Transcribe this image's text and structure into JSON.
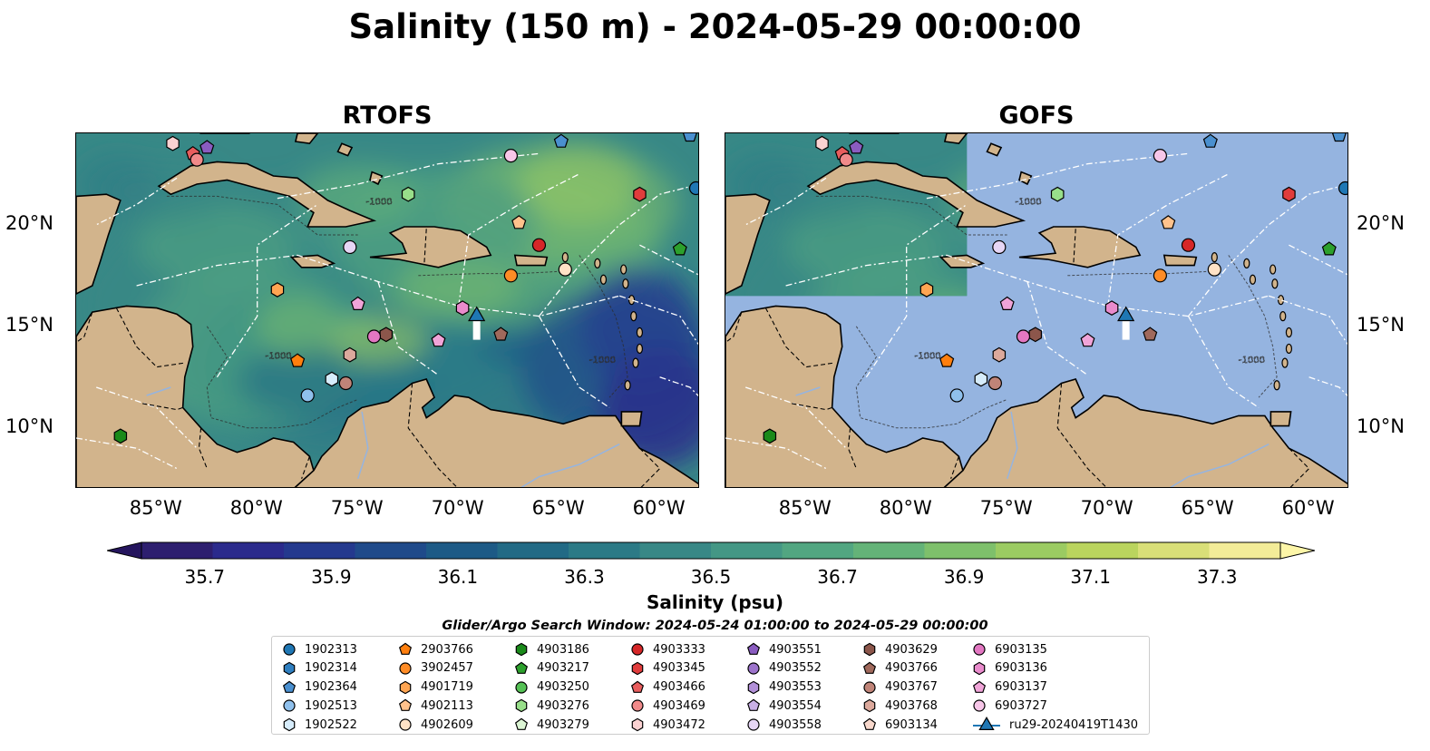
{
  "figure": {
    "suptitle": "Salinity (150 m) - 2024-05-29 00:00:00",
    "panels": [
      {
        "title": "RTOFS"
      },
      {
        "title": "GOFS"
      }
    ],
    "x_ticks": [
      "85°W",
      "80°W",
      "75°W",
      "70°W",
      "65°W",
      "60°W"
    ],
    "y_ticks": [
      "20°N",
      "15°N",
      "10°N"
    ],
    "lon_range": [
      -89,
      -58
    ],
    "lat_range": [
      7,
      24.5
    ],
    "contour_labels": [
      "-1000",
      "-1000",
      "-1000"
    ]
  },
  "colorbar": {
    "label": "Salinity (psu)",
    "range": [
      35.6,
      37.4
    ],
    "ticks": [
      "35.7",
      "35.9",
      "36.1",
      "36.3",
      "36.5",
      "36.7",
      "36.9",
      "37.1",
      "37.3"
    ],
    "colors": [
      "#2d1e6f",
      "#2b2a8c",
      "#24398e",
      "#1f4a8a",
      "#1d5a86",
      "#226a85",
      "#2c7a86",
      "#388886",
      "#449785",
      "#52a681",
      "#64b378",
      "#7ec06b",
      "#9bcb62",
      "#bad45e",
      "#d9df78",
      "#f3ec98"
    ]
  },
  "search_window": "Glider/Argo Search Window: 2024-05-24 01:00:00 to 2024-05-29 00:00:00",
  "legend": {
    "columns": [
      [
        {
          "label": "1902313",
          "marker": "circle",
          "color": "#1f77b4"
        },
        {
          "label": "1902314",
          "marker": "hexagon",
          "color": "#2f7fc0"
        },
        {
          "label": "1902364",
          "marker": "pentagon",
          "color": "#4a90d0"
        },
        {
          "label": "1902513",
          "marker": "circle",
          "color": "#8fc0ec"
        },
        {
          "label": "1902522",
          "marker": "hexagon",
          "color": "#d6ecfb"
        }
      ],
      [
        {
          "label": "2903766",
          "marker": "pentagon",
          "color": "#ff7f0e"
        },
        {
          "label": "3902457",
          "marker": "circle",
          "color": "#ff8c26"
        },
        {
          "label": "4901719",
          "marker": "hexagon",
          "color": "#ffa552"
        },
        {
          "label": "4902113",
          "marker": "pentagon",
          "color": "#ffc28c"
        },
        {
          "label": "4902609",
          "marker": "circle",
          "color": "#ffe2c6"
        }
      ],
      [
        {
          "label": "4903186",
          "marker": "hexagon",
          "color": "#1a8a1a"
        },
        {
          "label": "4903217",
          "marker": "pentagon",
          "color": "#2ca02c"
        },
        {
          "label": "4903250",
          "marker": "circle",
          "color": "#55c155"
        },
        {
          "label": "4903276",
          "marker": "hexagon",
          "color": "#98df8a"
        },
        {
          "label": "4903279",
          "marker": "pentagon",
          "color": "#dcf5d4"
        }
      ],
      [
        {
          "label": "4903333",
          "marker": "circle",
          "color": "#d62728"
        },
        {
          "label": "4903345",
          "marker": "hexagon",
          "color": "#e03c3c"
        },
        {
          "label": "4903466",
          "marker": "pentagon",
          "color": "#e85d5d"
        },
        {
          "label": "4903469",
          "marker": "circle",
          "color": "#f08a8a"
        },
        {
          "label": "4903472",
          "marker": "hexagon",
          "color": "#fbd2d2"
        }
      ],
      [
        {
          "label": "4903551",
          "marker": "pentagon",
          "color": "#8a5cc0"
        },
        {
          "label": "4903552",
          "marker": "circle",
          "color": "#9d74cc"
        },
        {
          "label": "4903553",
          "marker": "hexagon",
          "color": "#b290d8"
        },
        {
          "label": "4903554",
          "marker": "pentagon",
          "color": "#c9b0e6"
        },
        {
          "label": "4903558",
          "marker": "circle",
          "color": "#e6d6f5"
        }
      ],
      [
        {
          "label": "4903629",
          "marker": "hexagon",
          "color": "#8c564b"
        },
        {
          "label": "4903766",
          "marker": "pentagon",
          "color": "#a0695c"
        },
        {
          "label": "4903767",
          "marker": "circle",
          "color": "#c08478"
        },
        {
          "label": "4903768",
          "marker": "hexagon",
          "color": "#dca99c"
        },
        {
          "label": "6903134",
          "marker": "pentagon",
          "color": "#f8d8cc"
        }
      ],
      [
        {
          "label": "6903135",
          "marker": "circle",
          "color": "#e377c2"
        },
        {
          "label": "6903136",
          "marker": "hexagon",
          "color": "#e98bcc"
        },
        {
          "label": "6903137",
          "marker": "pentagon",
          "color": "#f0a4d8"
        },
        {
          "label": "6903727",
          "marker": "circle",
          "color": "#f7c6e8"
        },
        {
          "label": "ru29-20240419T1430",
          "marker": "triangle-line",
          "color": "#1f77b4"
        }
      ]
    ]
  },
  "markers": [
    {
      "id": "1902313",
      "lon": -58.2,
      "lat": 21.8
    },
    {
      "id": "1902364",
      "lon": -64.9,
      "lat": 24.1
    },
    {
      "id": "1902364b",
      "lon": -58.5,
      "lat": 24.4
    },
    {
      "id": "1902513",
      "lon": -77.5,
      "lat": 11.6
    },
    {
      "id": "1902522",
      "lon": -76.3,
      "lat": 12.4
    },
    {
      "id": "2903766",
      "lon": -78.0,
      "lat": 13.3
    },
    {
      "id": "3902457",
      "lon": -67.4,
      "lat": 17.5
    },
    {
      "id": "4901719",
      "lon": -79.0,
      "lat": 16.8
    },
    {
      "id": "4902113",
      "lon": -67.0,
      "lat": 20.1
    },
    {
      "id": "4902609",
      "lon": -64.7,
      "lat": 17.8
    },
    {
      "id": "4903186",
      "lon": -86.8,
      "lat": 9.6
    },
    {
      "id": "4903217",
      "lon": -59.0,
      "lat": 18.8
    },
    {
      "id": "4903276",
      "lon": -72.5,
      "lat": 21.5
    },
    {
      "id": "4903333",
      "lon": -66.0,
      "lat": 19.0
    },
    {
      "id": "4903345",
      "lon": -61.0,
      "lat": 21.5
    },
    {
      "id": "4903466",
      "lon": -83.2,
      "lat": 23.5
    },
    {
      "id": "4903469",
      "lon": -83.0,
      "lat": 23.2
    },
    {
      "id": "4903472",
      "lon": -84.2,
      "lat": 24.0
    },
    {
      "id": "4903551",
      "lon": -82.5,
      "lat": 23.8
    },
    {
      "id": "4903558",
      "lon": -75.4,
      "lat": 18.9
    },
    {
      "id": "4903629",
      "lon": -73.6,
      "lat": 14.6
    },
    {
      "id": "4903766",
      "lon": -67.9,
      "lat": 14.6
    },
    {
      "id": "4903767",
      "lon": -75.6,
      "lat": 12.2
    },
    {
      "id": "4903768",
      "lon": -75.4,
      "lat": 13.6
    },
    {
      "id": "6903135",
      "lon": -74.2,
      "lat": 14.5
    },
    {
      "id": "6903136",
      "lon": -69.8,
      "lat": 15.9
    },
    {
      "id": "6903137",
      "lon": -71.0,
      "lat": 14.3
    },
    {
      "id": "6903137b",
      "lon": -75.0,
      "lat": 16.1
    },
    {
      "id": "6903727",
      "lon": -67.4,
      "lat": 23.4
    },
    {
      "id": "ru29-20240419T1430",
      "lon": -69.1,
      "lat": 15.5
    }
  ]
}
